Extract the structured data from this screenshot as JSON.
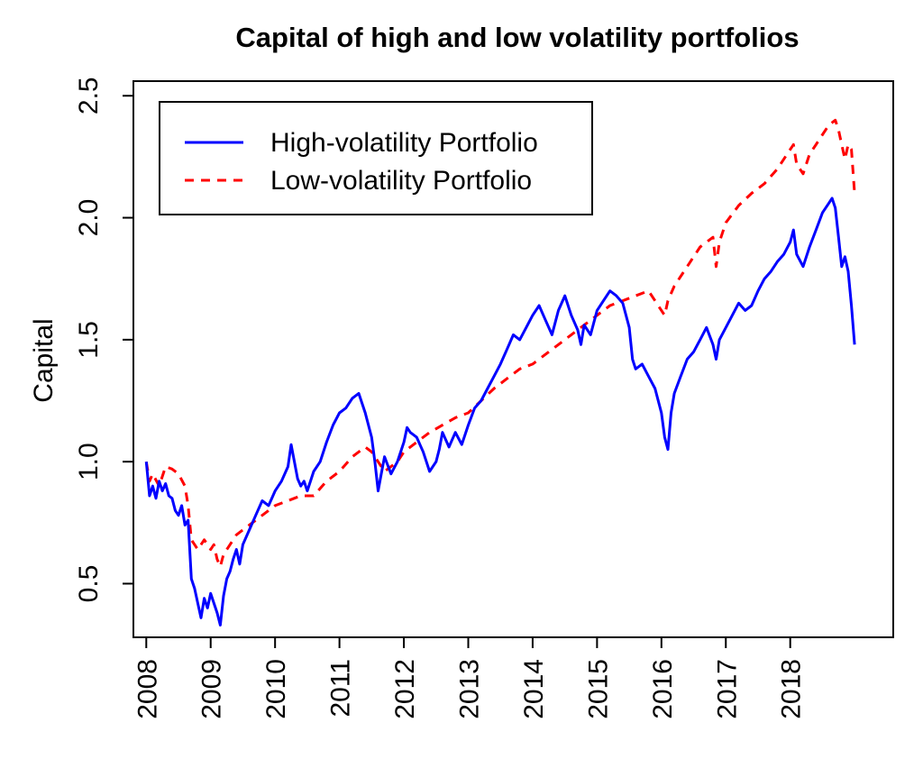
{
  "chart_data": {
    "type": "line",
    "title": "Capital of high and low volatility portfolios",
    "xlabel": "",
    "ylabel": "Capital",
    "xlim": [
      2007.8,
      2019.6
    ],
    "ylim": [
      0.28,
      2.56
    ],
    "x_ticks": [
      2008,
      2009,
      2010,
      2011,
      2012,
      2013,
      2014,
      2015,
      2016,
      2017,
      2018
    ],
    "x_tick_labels": [
      "2008",
      "2009",
      "2010",
      "2011",
      "2012",
      "2013",
      "2014",
      "2015",
      "2016",
      "2017",
      "2018"
    ],
    "y_ticks": [
      0.5,
      1.0,
      1.5,
      2.0,
      2.5
    ],
    "y_tick_labels": [
      "0.5",
      "1.0",
      "1.5",
      "2.0",
      "2.5"
    ],
    "grid": false,
    "legend_position": "top-left",
    "series": [
      {
        "name": "High-volatility Portfolio",
        "color": "#0000ff",
        "line_style": "solid",
        "x": [
          2008.0,
          2008.05,
          2008.1,
          2008.15,
          2008.2,
          2008.25,
          2008.3,
          2008.35,
          2008.4,
          2008.45,
          2008.5,
          2008.55,
          2008.6,
          2008.65,
          2008.7,
          2008.75,
          2008.8,
          2008.85,
          2008.9,
          2008.95,
          2009.0,
          2009.05,
          2009.1,
          2009.15,
          2009.2,
          2009.25,
          2009.3,
          2009.35,
          2009.4,
          2009.45,
          2009.5,
          2009.6,
          2009.7,
          2009.8,
          2009.9,
          2010.0,
          2010.1,
          2010.2,
          2010.25,
          2010.3,
          2010.35,
          2010.4,
          2010.45,
          2010.5,
          2010.6,
          2010.7,
          2010.8,
          2010.9,
          2011.0,
          2011.1,
          2011.2,
          2011.3,
          2011.4,
          2011.5,
          2011.55,
          2011.6,
          2011.65,
          2011.7,
          2011.8,
          2011.9,
          2012.0,
          2012.05,
          2012.1,
          2012.2,
          2012.3,
          2012.4,
          2012.5,
          2012.55,
          2012.6,
          2012.7,
          2012.8,
          2012.9,
          2013.0,
          2013.1,
          2013.2,
          2013.3,
          2013.4,
          2013.5,
          2013.6,
          2013.7,
          2013.8,
          2013.9,
          2014.0,
          2014.1,
          2014.2,
          2014.3,
          2014.4,
          2014.5,
          2014.6,
          2014.7,
          2014.75,
          2014.8,
          2014.9,
          2015.0,
          2015.1,
          2015.2,
          2015.3,
          2015.4,
          2015.5,
          2015.55,
          2015.6,
          2015.7,
          2015.8,
          2015.9,
          2016.0,
          2016.05,
          2016.1,
          2016.15,
          2016.2,
          2016.3,
          2016.4,
          2016.5,
          2016.6,
          2016.7,
          2016.8,
          2016.85,
          2016.9,
          2017.0,
          2017.1,
          2017.2,
          2017.3,
          2017.4,
          2017.5,
          2017.6,
          2017.7,
          2017.8,
          2017.9,
          2018.0,
          2018.05,
          2018.1,
          2018.2,
          2018.3,
          2018.4,
          2018.5,
          2018.6,
          2018.65,
          2018.7,
          2018.75,
          2018.8,
          2018.85,
          2018.9,
          2018.95,
          2019.0
        ],
        "values": [
          1.0,
          0.86,
          0.9,
          0.85,
          0.92,
          0.88,
          0.91,
          0.86,
          0.85,
          0.8,
          0.78,
          0.82,
          0.74,
          0.76,
          0.52,
          0.48,
          0.42,
          0.36,
          0.44,
          0.4,
          0.46,
          0.42,
          0.38,
          0.33,
          0.45,
          0.52,
          0.55,
          0.6,
          0.64,
          0.58,
          0.66,
          0.72,
          0.78,
          0.84,
          0.82,
          0.88,
          0.92,
          0.98,
          1.07,
          1.0,
          0.93,
          0.9,
          0.92,
          0.88,
          0.96,
          1.0,
          1.08,
          1.15,
          1.2,
          1.22,
          1.26,
          1.28,
          1.2,
          1.1,
          1.0,
          0.88,
          0.95,
          1.02,
          0.95,
          1.0,
          1.08,
          1.14,
          1.12,
          1.1,
          1.04,
          0.96,
          1.0,
          1.05,
          1.12,
          1.06,
          1.12,
          1.07,
          1.15,
          1.22,
          1.25,
          1.3,
          1.35,
          1.4,
          1.46,
          1.52,
          1.5,
          1.55,
          1.6,
          1.64,
          1.58,
          1.52,
          1.62,
          1.68,
          1.6,
          1.54,
          1.48,
          1.56,
          1.52,
          1.62,
          1.66,
          1.7,
          1.68,
          1.65,
          1.55,
          1.42,
          1.38,
          1.4,
          1.35,
          1.3,
          1.2,
          1.1,
          1.05,
          1.2,
          1.28,
          1.35,
          1.42,
          1.45,
          1.5,
          1.55,
          1.48,
          1.42,
          1.5,
          1.55,
          1.6,
          1.65,
          1.62,
          1.64,
          1.7,
          1.75,
          1.78,
          1.82,
          1.85,
          1.9,
          1.95,
          1.85,
          1.8,
          1.88,
          1.95,
          2.02,
          2.06,
          2.08,
          2.04,
          1.92,
          1.8,
          1.84,
          1.78,
          1.64,
          1.48
        ]
      },
      {
        "name": "Low-volatility Portfolio",
        "color": "#ff0000",
        "line_style": "dashed",
        "x": [
          2008.0,
          2008.05,
          2008.1,
          2008.2,
          2008.3,
          2008.4,
          2008.5,
          2008.6,
          2008.65,
          2008.7,
          2008.75,
          2008.8,
          2008.9,
          2009.0,
          2009.05,
          2009.1,
          2009.15,
          2009.2,
          2009.3,
          2009.4,
          2009.5,
          2009.6,
          2009.7,
          2009.8,
          2009.9,
          2010.0,
          2010.2,
          2010.4,
          2010.6,
          2010.8,
          2011.0,
          2011.2,
          2011.4,
          2011.5,
          2011.6,
          2011.7,
          2011.8,
          2011.9,
          2012.0,
          2012.2,
          2012.4,
          2012.6,
          2012.8,
          2013.0,
          2013.2,
          2013.4,
          2013.6,
          2013.8,
          2014.0,
          2014.2,
          2014.4,
          2014.6,
          2014.8,
          2015.0,
          2015.2,
          2015.4,
          2015.6,
          2015.8,
          2016.0,
          2016.05,
          2016.1,
          2016.2,
          2016.4,
          2016.6,
          2016.8,
          2016.85,
          2016.9,
          2017.0,
          2017.2,
          2017.4,
          2017.6,
          2017.8,
          2018.0,
          2018.05,
          2018.1,
          2018.2,
          2018.3,
          2018.4,
          2018.5,
          2018.6,
          2018.7,
          2018.75,
          2018.8,
          2018.85,
          2018.9,
          2018.95,
          2019.0
        ],
        "values": [
          1.0,
          0.92,
          0.95,
          0.9,
          0.98,
          0.97,
          0.95,
          0.9,
          0.82,
          0.68,
          0.66,
          0.64,
          0.68,
          0.64,
          0.66,
          0.6,
          0.57,
          0.62,
          0.66,
          0.7,
          0.72,
          0.74,
          0.76,
          0.78,
          0.8,
          0.82,
          0.84,
          0.86,
          0.86,
          0.92,
          0.96,
          1.02,
          1.06,
          1.04,
          1.0,
          0.96,
          0.98,
          1.0,
          1.04,
          1.08,
          1.12,
          1.15,
          1.18,
          1.2,
          1.25,
          1.3,
          1.34,
          1.38,
          1.4,
          1.44,
          1.48,
          1.52,
          1.56,
          1.6,
          1.64,
          1.66,
          1.68,
          1.7,
          1.62,
          1.6,
          1.66,
          1.72,
          1.8,
          1.88,
          1.92,
          1.8,
          1.9,
          1.98,
          2.05,
          2.1,
          2.14,
          2.2,
          2.28,
          2.3,
          2.22,
          2.18,
          2.26,
          2.3,
          2.34,
          2.38,
          2.4,
          2.36,
          2.3,
          2.24,
          2.3,
          2.28,
          2.1
        ]
      }
    ]
  }
}
